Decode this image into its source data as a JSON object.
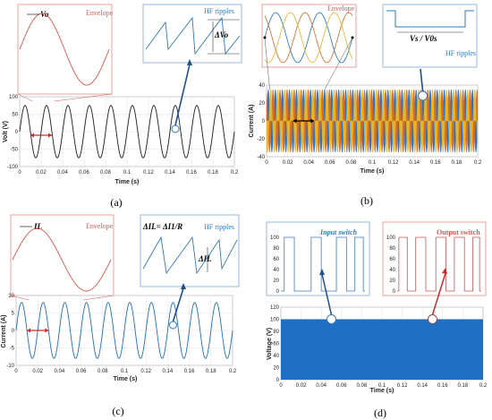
{
  "colors": {
    "dark": "#1a1a1a",
    "blue": "#1f6fc4",
    "orange": "#d9661f",
    "gold": "#e6b321",
    "red": "#cc2b2b",
    "envelope_red": "#e0534a",
    "ripple_blue": "#2f78c4"
  },
  "chart_data": [
    {
      "id": "a",
      "type": "line",
      "panel_label": "(a)",
      "xlabel": "Time (s)",
      "ylabel": "Volt (V)",
      "xlim": [
        0,
        0.2
      ],
      "ylim": [
        -100,
        100
      ],
      "xticks": [
        "0",
        "0.02",
        "0.04",
        "0.06",
        "0.08",
        "0.1",
        "0.12",
        "0.14",
        "0.16",
        "0.18",
        "0.2"
      ],
      "yticks": [
        "100",
        "50",
        "0",
        "-50",
        "-100"
      ],
      "series": [
        {
          "amplitude": 75,
          "frequency_hz": 50,
          "color": "dark"
        }
      ],
      "grid": true,
      "insets": [
        {
          "labels": [
            "Vo",
            "Envelope"
          ],
          "kind": "envelope"
        },
        {
          "labels": [
            "HF ripples",
            "ΔVo"
          ],
          "kind": "ripple"
        }
      ],
      "period_marker": [
        0.01,
        0.03
      ]
    },
    {
      "id": "b",
      "type": "line",
      "panel_label": "(b)",
      "xlabel": "Time (s)",
      "ylabel": "Current (A)",
      "xlim": [
        0,
        0.2
      ],
      "ylim": [
        -40,
        40
      ],
      "xticks": [
        "0",
        "0.02",
        "0.04",
        "0.06",
        "0.08",
        "0.1",
        "0.12",
        "0.14",
        "0.16",
        "0.18",
        "0.2"
      ],
      "yticks": [
        "40",
        "20",
        "0",
        "-20",
        "-40"
      ],
      "series": [
        {
          "amplitude": 35,
          "frequency_hz": 150,
          "phase_deg": 0,
          "color": "blue"
        },
        {
          "amplitude": 35,
          "frequency_hz": 150,
          "phase_deg": 120,
          "color": "orange"
        },
        {
          "amplitude": 35,
          "frequency_hz": 150,
          "phase_deg": 240,
          "color": "gold"
        }
      ],
      "grid": true,
      "insets": [
        {
          "labels": [
            "Envelope"
          ],
          "kind": "envelope"
        },
        {
          "labels": [
            "HF ripples",
            "Vs / V0s"
          ],
          "kind": "ripple"
        }
      ],
      "period_marker": [
        0.025,
        0.045
      ]
    },
    {
      "id": "c",
      "type": "line",
      "panel_label": "(c)",
      "xlabel": "Time (s)",
      "ylabel": "Current (A)",
      "xlim": [
        0,
        0.2
      ],
      "ylim": [
        -10,
        10
      ],
      "xticks": [
        "0",
        "0.02",
        "0.04",
        "0.06",
        "0.08",
        "0.1",
        "0.12",
        "0.14",
        "0.16",
        "0.18",
        "0.2"
      ],
      "yticks": [
        "10",
        "5",
        "0",
        "-5",
        "-10"
      ],
      "series": [
        {
          "amplitude": 8,
          "frequency_hz": 50,
          "color": "blue"
        }
      ],
      "grid": true,
      "insets": [
        {
          "labels": [
            "IL",
            "Envelope"
          ],
          "kind": "envelope"
        },
        {
          "labels": [
            "HF ripples",
            "ΔIL= ΔI1/R",
            "ΔIL"
          ],
          "kind": "ripple"
        }
      ],
      "period_marker": [
        0.01,
        0.03
      ]
    },
    {
      "id": "d",
      "type": "area",
      "panel_label": "(d)",
      "xlabel": "Time (s)",
      "ylabel": "Voltage (V)",
      "xlim": [
        0,
        0.2
      ],
      "ylim": [
        0,
        120
      ],
      "xticks": [
        "0",
        "0.02",
        "0.04",
        "0.06",
        "0.08",
        "0.1",
        "0.12",
        "0.14",
        "0.16",
        "0.18",
        "0.2"
      ],
      "yticks": [
        "120",
        "100",
        "80",
        "60",
        "40",
        "20",
        "0"
      ],
      "series": [
        {
          "level": 100,
          "color": "blue"
        }
      ],
      "grid": true,
      "insets": [
        {
          "labels": [
            "Input switch"
          ],
          "kind": "switch",
          "yticks": [
            "100",
            "80",
            "60",
            "40",
            "20",
            "0"
          ]
        },
        {
          "labels": [
            "Output switch"
          ],
          "kind": "switch",
          "yticks": [
            "100",
            "80",
            "60",
            "40",
            "20",
            "0"
          ]
        }
      ]
    }
  ]
}
